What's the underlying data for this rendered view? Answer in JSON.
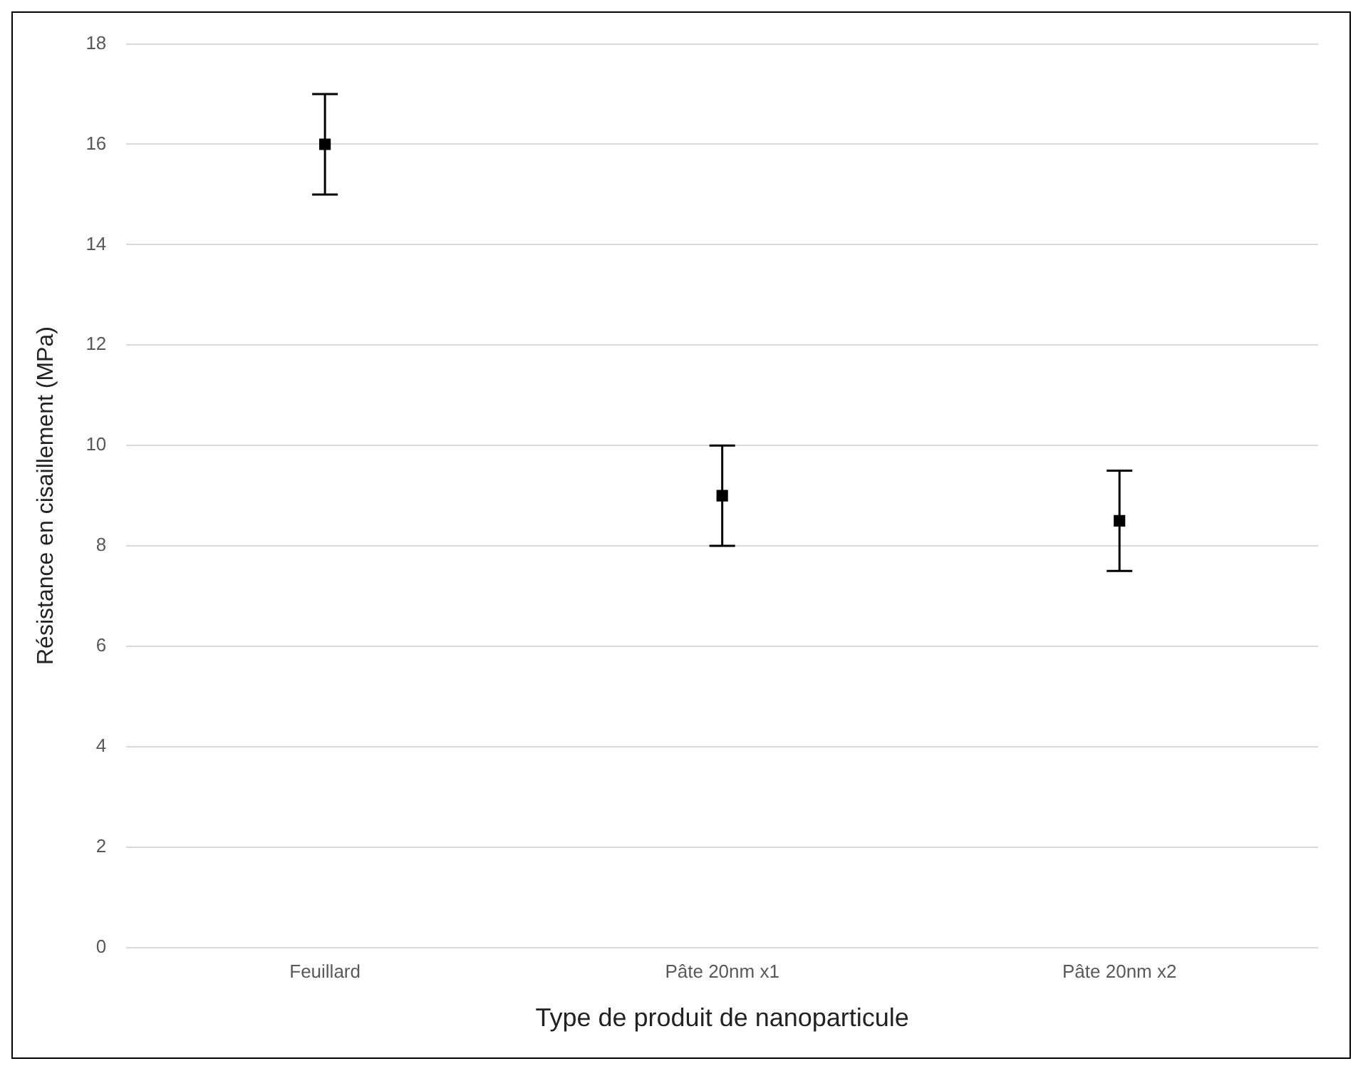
{
  "chart_data": {
    "type": "scatter",
    "xlabel": "Type de produit de nanoparticule",
    "ylabel": "Résistance en cisaillement (MPa)",
    "categories": [
      "Feuillard",
      "Pâte 20nm x1",
      "Pâte 20nm x2"
    ],
    "series": [
      {
        "color": "#000000",
        "values": [
          16,
          9,
          8.5
        ],
        "errors": [
          1,
          1,
          1
        ]
      }
    ],
    "ylim": [
      0,
      18
    ],
    "yticks": [
      0,
      2,
      4,
      6,
      8,
      10,
      12,
      14,
      16,
      18
    ],
    "grid": "y",
    "marker": "square",
    "legend": false
  }
}
